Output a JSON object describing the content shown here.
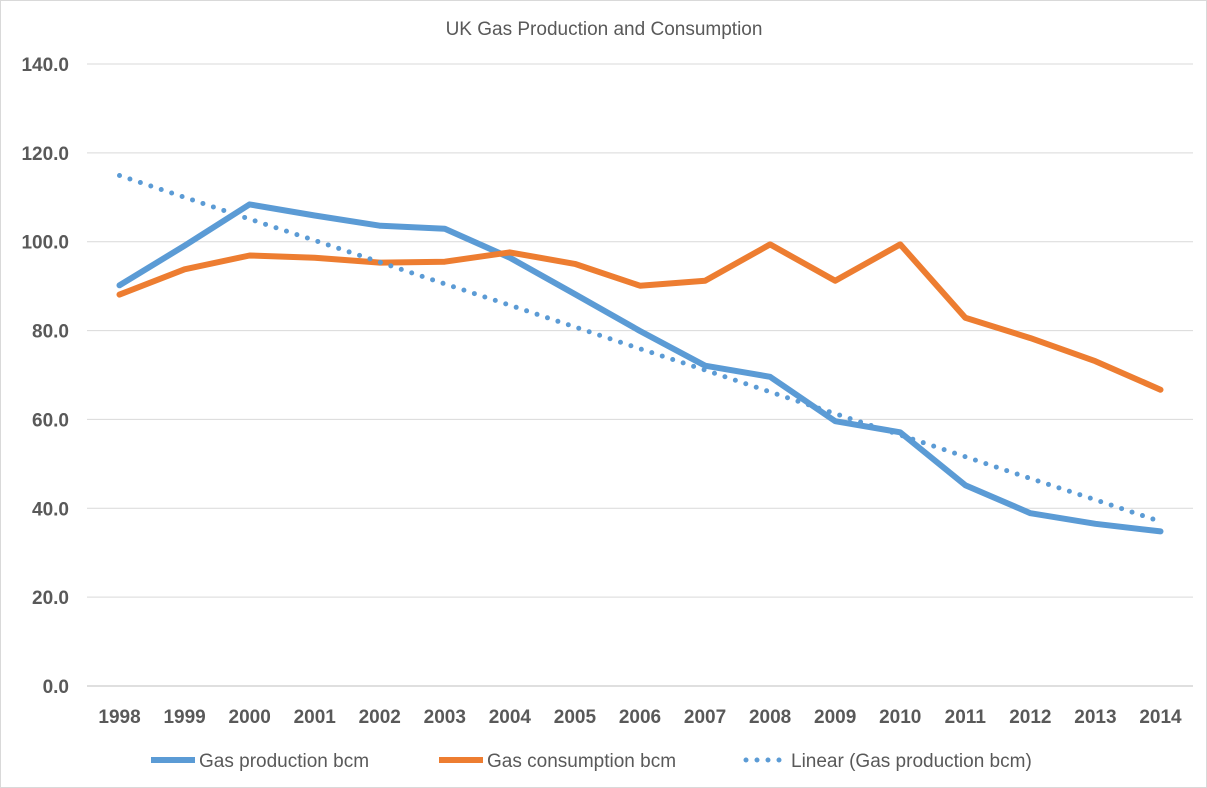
{
  "chart_data": {
    "type": "line",
    "title": "UK Gas Production and Consumption",
    "xlabel": "",
    "ylabel": "",
    "categories": [
      "1998",
      "1999",
      "2000",
      "2001",
      "2002",
      "2003",
      "2004",
      "2005",
      "2006",
      "2007",
      "2008",
      "2009",
      "2010",
      "2011",
      "2012",
      "2013",
      "2014"
    ],
    "ylim": [
      0,
      140
    ],
    "yticks": [
      "0.0",
      "20.0",
      "40.0",
      "60.0",
      "80.0",
      "100.0",
      "120.0",
      "140.0"
    ],
    "grid": true,
    "legend_position": "bottom",
    "series": [
      {
        "name": "Gas production bcm",
        "style": "solid",
        "color": "#5b9bd5",
        "values": [
          90.2,
          99.1,
          108.4,
          105.9,
          103.6,
          102.9,
          96.4,
          88.2,
          79.9,
          72.1,
          69.6,
          59.6,
          57.1,
          45.2,
          38.9,
          36.5,
          34.8
        ]
      },
      {
        "name": "Gas consumption bcm",
        "style": "solid",
        "color": "#ed7d31",
        "values": [
          88.1,
          93.8,
          96.9,
          96.4,
          95.3,
          95.5,
          97.6,
          95.0,
          90.1,
          91.2,
          99.4,
          91.2,
          99.4,
          82.9,
          78.3,
          73.1,
          66.7
        ]
      },
      {
        "name": "Linear (Gas production bcm)",
        "style": "dotted",
        "color": "#5b9bd5",
        "values": [
          114.9,
          110.0,
          105.1,
          100.3,
          95.4,
          90.5,
          85.7,
          80.8,
          75.9,
          71.1,
          66.2,
          61.3,
          56.5,
          51.6,
          46.7,
          41.9,
          37.0
        ]
      }
    ]
  }
}
